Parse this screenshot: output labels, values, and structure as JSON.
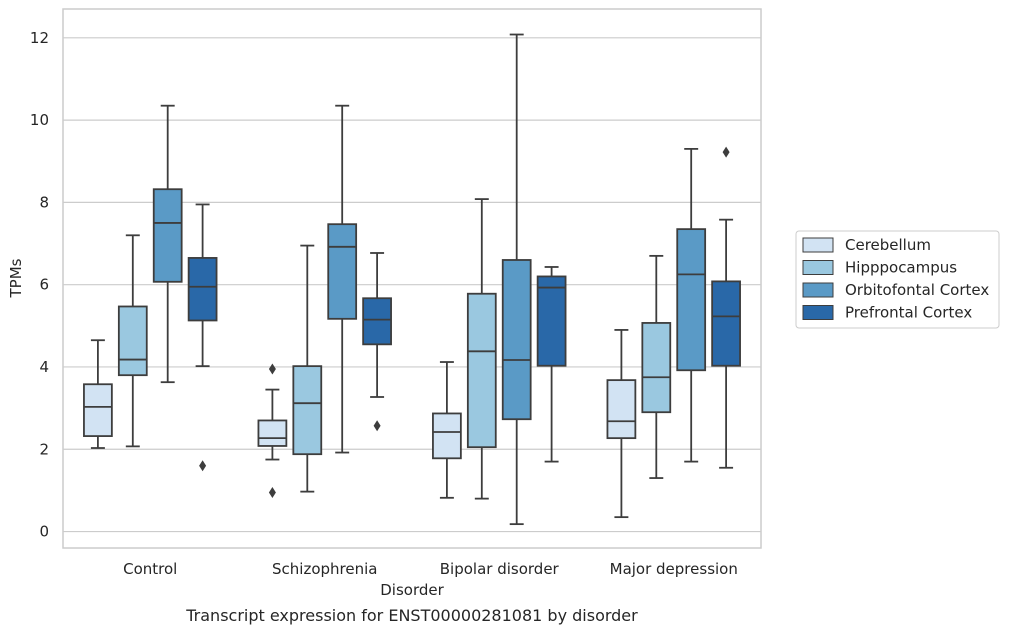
{
  "caption": "Transcript expression for ENST00000281081 by disorder",
  "chart_data": {
    "type": "box",
    "xlabel": "Disorder",
    "ylabel": "TPMs",
    "ylim": [
      -0.4,
      12.7
    ],
    "yticks": [
      0,
      2,
      4,
      6,
      8,
      10,
      12
    ],
    "grid": "horizontal",
    "legend_position": "center-right",
    "categories": [
      "Control",
      "Schizophrenia",
      "Bipolar disorder",
      "Major depression"
    ],
    "series": [
      {
        "name": "Cerebellum",
        "color": "#d2e3f3",
        "boxes": [
          {
            "whisker_low": 2.03,
            "q1": 2.32,
            "median": 3.03,
            "q3": 3.58,
            "whisker_high": 4.65,
            "outliers": []
          },
          {
            "whisker_low": 1.75,
            "q1": 2.08,
            "median": 2.27,
            "q3": 2.7,
            "whisker_high": 3.45,
            "outliers": [
              3.95,
              0.95
            ]
          },
          {
            "whisker_low": 0.82,
            "q1": 1.78,
            "median": 2.42,
            "q3": 2.87,
            "whisker_high": 4.12,
            "outliers": []
          },
          {
            "whisker_low": 0.35,
            "q1": 2.27,
            "median": 2.68,
            "q3": 3.68,
            "whisker_high": 4.9,
            "outliers": []
          }
        ]
      },
      {
        "name": "Hipppocampus",
        "color": "#9ac8e0",
        "boxes": [
          {
            "whisker_low": 2.07,
            "q1": 3.8,
            "median": 4.18,
            "q3": 5.47,
            "whisker_high": 7.2,
            "outliers": []
          },
          {
            "whisker_low": 0.97,
            "q1": 1.88,
            "median": 3.12,
            "q3": 4.02,
            "whisker_high": 6.95,
            "outliers": []
          },
          {
            "whisker_low": 0.8,
            "q1": 2.05,
            "median": 4.38,
            "q3": 5.78,
            "whisker_high": 8.08,
            "outliers": []
          },
          {
            "whisker_low": 1.3,
            "q1": 2.9,
            "median": 3.75,
            "q3": 5.07,
            "whisker_high": 6.7,
            "outliers": []
          }
        ]
      },
      {
        "name": "Orbitofontal Cortex",
        "color": "#5a9ac6",
        "boxes": [
          {
            "whisker_low": 3.63,
            "q1": 6.07,
            "median": 7.5,
            "q3": 8.32,
            "whisker_high": 10.35,
            "outliers": []
          },
          {
            "whisker_low": 1.92,
            "q1": 5.17,
            "median": 6.92,
            "q3": 7.47,
            "whisker_high": 10.35,
            "outliers": []
          },
          {
            "whisker_low": 0.18,
            "q1": 2.73,
            "median": 4.17,
            "q3": 6.6,
            "whisker_high": 12.08,
            "outliers": []
          },
          {
            "whisker_low": 1.7,
            "q1": 3.92,
            "median": 6.25,
            "q3": 7.35,
            "whisker_high": 9.3,
            "outliers": []
          }
        ]
      },
      {
        "name": "Prefrontal Cortex",
        "color": "#2968a8",
        "boxes": [
          {
            "whisker_low": 4.02,
            "q1": 5.13,
            "median": 5.95,
            "q3": 6.65,
            "whisker_high": 7.95,
            "outliers": [
              1.6
            ]
          },
          {
            "whisker_low": 3.27,
            "q1": 4.55,
            "median": 5.15,
            "q3": 5.67,
            "whisker_high": 6.77,
            "outliers": [
              2.57
            ]
          },
          {
            "whisker_low": 1.7,
            "q1": 4.03,
            "median": 5.93,
            "q3": 6.2,
            "whisker_high": 6.43,
            "outliers": []
          },
          {
            "whisker_low": 1.55,
            "q1": 4.03,
            "median": 5.23,
            "q3": 6.08,
            "whisker_high": 7.58,
            "outliers": [
              9.22
            ]
          }
        ]
      }
    ]
  }
}
